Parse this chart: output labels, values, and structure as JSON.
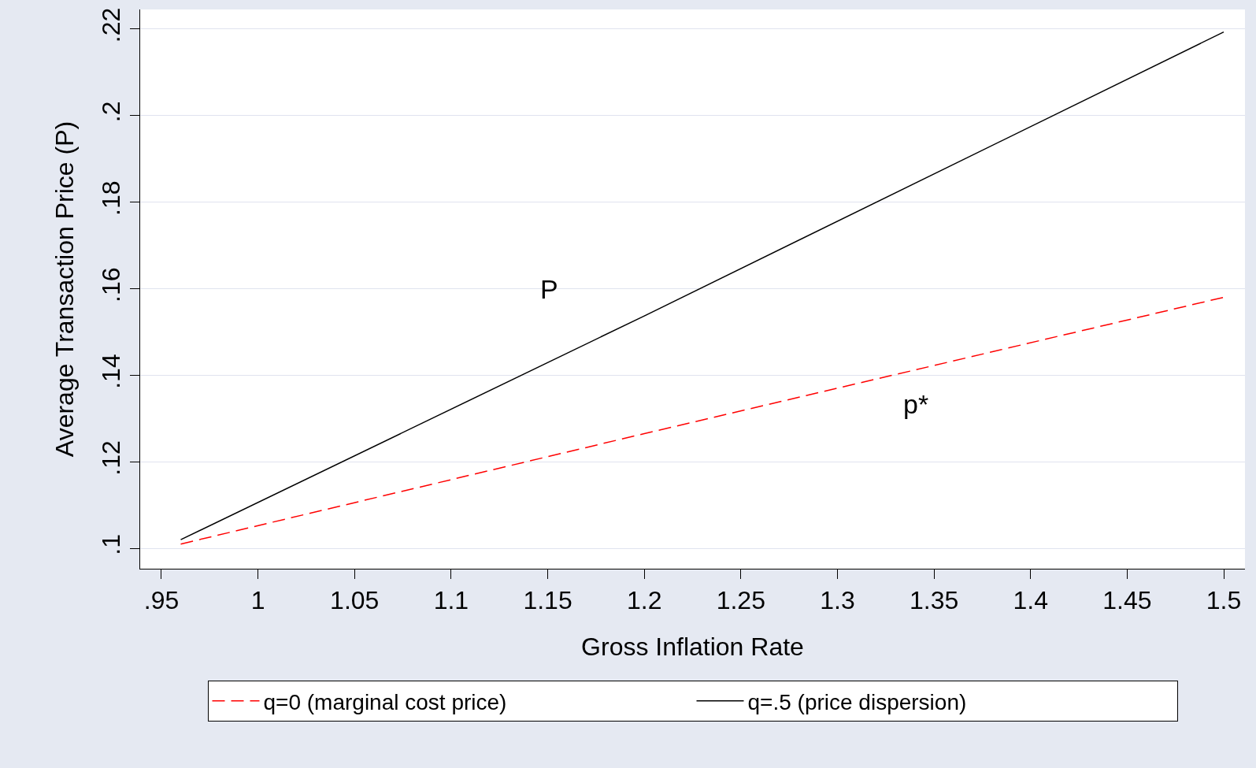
{
  "chart_data": {
    "type": "line",
    "xlabel": "Gross Inflation Rate",
    "ylabel": "Average Transaction Price (P)",
    "x": [
      0.96,
      1.2,
      1.5
    ],
    "series": [
      {
        "name": "q=0 (marginal cost price)",
        "color": "#ff0000",
        "line_style": "dashed",
        "values": [
          0.101,
          0.1265,
          0.158
        ]
      },
      {
        "name": "q=.5 (price dispersion)",
        "color": "#000000",
        "line_style": "solid",
        "values": [
          0.102,
          0.1537,
          0.2193
        ]
      }
    ],
    "xlim": [
      0.939,
      1.511
    ],
    "xticks": [
      {
        "value": 0.95,
        "label": ".95"
      },
      1,
      1.05,
      1.1,
      1.15,
      1.2,
      1.25,
      1.3,
      1.35,
      1.4,
      1.45,
      1.5
    ],
    "ylim": [
      0.0953,
      0.2245
    ],
    "yticks": [
      {
        "value": 0.1,
        "label": ".1"
      },
      {
        "value": 0.12,
        "label": ".12"
      },
      {
        "value": 0.14,
        "label": ".14"
      },
      {
        "value": 0.16,
        "label": ".16"
      },
      {
        "value": 0.18,
        "label": ".18"
      },
      {
        "value": 0.2,
        "label": ".2"
      },
      {
        "value": 0.22,
        "label": ".22"
      }
    ],
    "grid": "y",
    "legend": "bottom",
    "marker": "none",
    "annotations": [
      "P",
      "p*"
    ]
  }
}
